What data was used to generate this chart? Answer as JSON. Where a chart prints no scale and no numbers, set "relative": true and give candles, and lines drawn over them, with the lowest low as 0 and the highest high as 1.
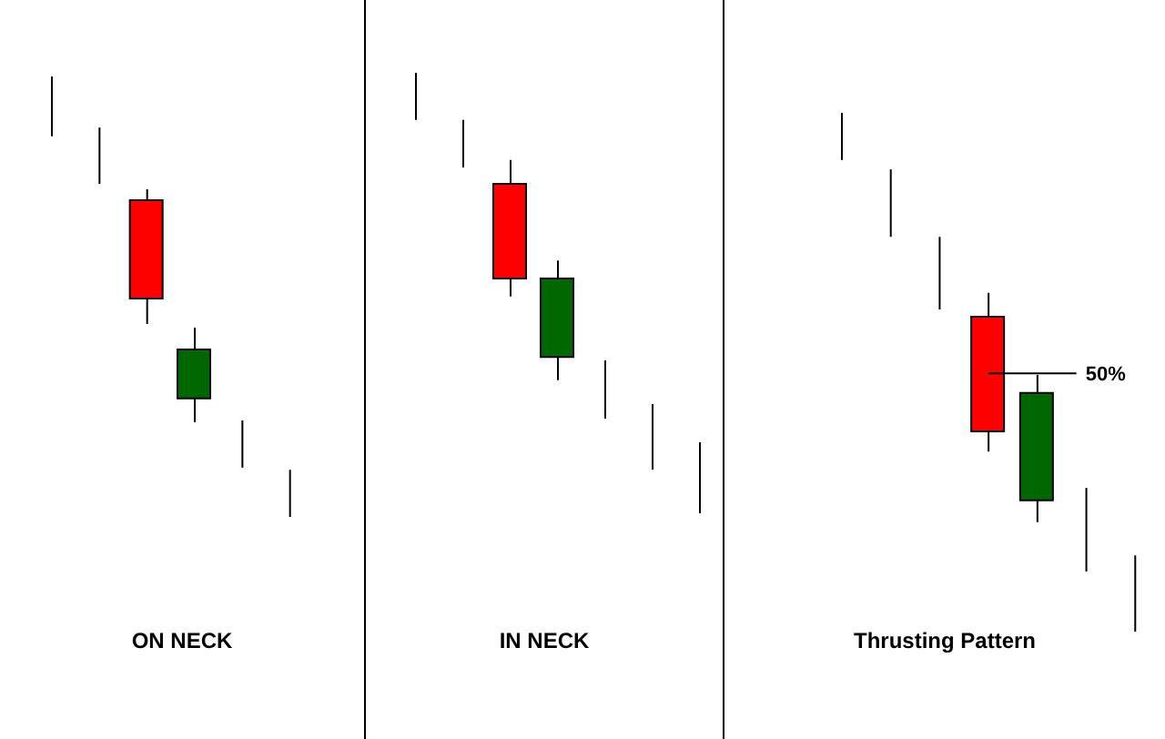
{
  "chart_data": [
    {
      "type": "candlestick",
      "xlabel": "ON NECK",
      "relative": true,
      "tick_labels": false,
      "categories": [
        null,
        null,
        null,
        null,
        null,
        null
      ],
      "ohlc": [
        [
          1,
          1,
          0.864,
          0.864
        ],
        [
          0.884,
          0.884,
          0.756,
          0.756
        ],
        [
          0.719,
          0.744,
          0.438,
          0.496
        ],
        [
          0.269,
          0.43,
          0.215,
          0.38
        ],
        [
          0.219,
          0.219,
          0.112,
          0.112
        ],
        [
          0.107,
          0.107,
          0,
          0
        ]
      ],
      "colors": [
        "#000000",
        "#000000",
        "#ff0000",
        "#006600",
        "#000000",
        "#000000"
      ]
    },
    {
      "type": "candlestick",
      "xlabel": "IN NECK",
      "relative": true,
      "tick_labels": false,
      "categories": [
        null,
        null,
        null,
        null,
        null,
        null,
        null
      ],
      "ohlc": [
        [
          1,
          1,
          0.893,
          0.893
        ],
        [
          0.893,
          0.893,
          0.785,
          0.785
        ],
        [
          0.748,
          0.802,
          0.492,
          0.533
        ],
        [
          0.355,
          0.574,
          0.302,
          0.533
        ],
        [
          0.347,
          0.347,
          0.215,
          0.215
        ],
        [
          0.248,
          0.248,
          0.099,
          0.099
        ],
        [
          0.161,
          0.161,
          0,
          0
        ]
      ],
      "colors": [
        "#000000",
        "#000000",
        "#ff0000",
        "#006600",
        "#000000",
        "#000000",
        "#000000"
      ]
    },
    {
      "type": "candlestick",
      "xlabel": "Thrusting Pattern",
      "relative": true,
      "tick_labels": false,
      "categories": [
        null,
        null,
        null,
        null,
        null,
        null,
        null
      ],
      "ohlc": [
        [
          1,
          1,
          0.909,
          0.909
        ],
        [
          0.891,
          0.891,
          0.761,
          0.761
        ],
        [
          0.761,
          0.761,
          0.621,
          0.621
        ],
        [
          0.607,
          0.653,
          0.347,
          0.386
        ],
        [
          0.253,
          0.495,
          0.211,
          0.46
        ],
        [
          0.277,
          0.277,
          0.116,
          0.116
        ],
        [
          0.147,
          0.147,
          0,
          0
        ]
      ],
      "colors": [
        "#000000",
        "#000000",
        "#000000",
        "#ff0000",
        "#006600",
        "#000000",
        "#000000"
      ],
      "ref_lines": [
        {
          "axis": "y",
          "value": 0.498,
          "label": "50%",
          "color": "#000000"
        }
      ]
    }
  ]
}
